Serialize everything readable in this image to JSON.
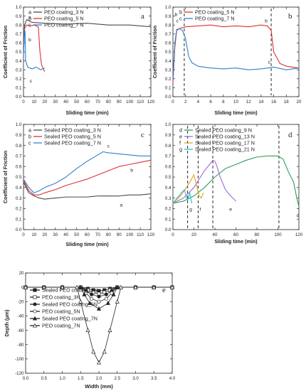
{
  "chart_data": [
    {
      "type": "line",
      "panel": "a",
      "xlabel": "Sliding time (min)",
      "ylabel": "Coefficient of Friction",
      "xlim": [
        0,
        120
      ],
      "ylim": [
        0,
        1.0
      ],
      "xticks": [
        0,
        10,
        20,
        30,
        40,
        50,
        60,
        70,
        80,
        90,
        100,
        110,
        120
      ],
      "yticks": [
        0.0,
        0.1,
        0.2,
        0.3,
        0.4,
        0.5,
        0.6,
        0.7,
        0.8,
        0.9,
        1.0
      ],
      "legend_position": "top-left",
      "series": [
        {
          "key": "a",
          "name": "PEO coating_3 N",
          "color": "#4a4a4a",
          "x": [
            0,
            1,
            3,
            8,
            20,
            40,
            60,
            80,
            100,
            120
          ],
          "y": [
            0.5,
            0.8,
            0.86,
            0.83,
            0.82,
            0.81,
            0.82,
            0.8,
            0.8,
            0.78
          ]
        },
        {
          "key": "b",
          "name": "PEO coating_5 N",
          "color": "#e03030",
          "x": [
            0,
            1,
            3,
            6,
            10,
            14,
            15.5,
            17,
            19,
            20
          ],
          "y": [
            0.45,
            0.76,
            0.8,
            0.79,
            0.8,
            0.78,
            0.5,
            0.36,
            0.3,
            0.28
          ]
        },
        {
          "key": "c",
          "name": "PEO coating_7 N",
          "color": "#2f7fd0",
          "x": [
            0,
            1,
            1.5,
            2,
            4,
            8,
            12,
            16,
            20
          ],
          "y": [
            0.45,
            0.74,
            0.73,
            0.4,
            0.33,
            0.31,
            0.33,
            0.3,
            0.32
          ]
        }
      ],
      "annotations": [
        {
          "text": "a",
          "x": 6,
          "y": 0.87
        },
        {
          "text": "b",
          "x": 6,
          "y": 0.62
        },
        {
          "text": "c",
          "x": 7,
          "y": 0.16
        }
      ]
    },
    {
      "type": "line",
      "panel": "b",
      "xlabel": "Sliding time (min)",
      "ylabel": "Coefficient of Friction",
      "xlim": [
        0,
        20
      ],
      "ylim": [
        0,
        1.0
      ],
      "xticks": [
        0,
        2,
        4,
        6,
        8,
        10,
        12,
        14,
        16,
        18,
        20
      ],
      "yticks": [
        0.0,
        0.1,
        0.2,
        0.3,
        0.4,
        0.5,
        0.6,
        0.7,
        0.8,
        0.9,
        1.0
      ],
      "legend_position": "top-left",
      "series": [
        {
          "key": "b",
          "name": "PEO coating_5 N",
          "color": "#e03030",
          "x": [
            0,
            0.3,
            0.6,
            1,
            2,
            4,
            6,
            8,
            10,
            12,
            14,
            15,
            15.6,
            16,
            17,
            18,
            19,
            20
          ],
          "y": [
            0.15,
            0.55,
            0.74,
            0.76,
            0.78,
            0.79,
            0.8,
            0.78,
            0.79,
            0.78,
            0.8,
            0.79,
            0.74,
            0.5,
            0.37,
            0.34,
            0.33,
            0.32
          ]
        },
        {
          "key": "c",
          "name": "PEO coating_7 N",
          "color": "#2f7fd0",
          "x": [
            0,
            0.3,
            0.6,
            1,
            1.5,
            2,
            2.5,
            3,
            4,
            6,
            8,
            10,
            12,
            14,
            16,
            18,
            20
          ],
          "y": [
            0.2,
            0.6,
            0.75,
            0.76,
            0.74,
            0.65,
            0.45,
            0.38,
            0.34,
            0.32,
            0.31,
            0.32,
            0.3,
            0.31,
            0.33,
            0.3,
            0.32
          ]
        }
      ],
      "vlines": [
        1.8,
        15.6
      ],
      "annotations": [
        {
          "text": "b",
          "x": 0.5,
          "y": 0.9
        },
        {
          "text": "c",
          "x": 0.7,
          "y": 0.83
        },
        {
          "text": "b",
          "x": 14.8,
          "y": 0.83
        },
        {
          "text": "c",
          "x": 15.3,
          "y": 0.37
        }
      ]
    },
    {
      "type": "line",
      "panel": "c",
      "xlabel": "Sliding time (min)",
      "ylabel": "Coefficient of Friction",
      "xlim": [
        0,
        120
      ],
      "ylim": [
        0,
        1.0
      ],
      "xticks": [
        0,
        10,
        20,
        30,
        40,
        50,
        60,
        70,
        80,
        90,
        100,
        110,
        120
      ],
      "yticks": [
        0.0,
        0.1,
        0.2,
        0.3,
        0.4,
        0.5,
        0.6,
        0.7,
        0.8,
        0.9,
        1.0
      ],
      "legend_position": "top-left",
      "series": [
        {
          "key": "a",
          "name": "Sealed PEO coating_3 N",
          "color": "#4a4a4a",
          "x": [
            0,
            5,
            10,
            15,
            20,
            30,
            40,
            50,
            60,
            70,
            80,
            90,
            100,
            110,
            120
          ],
          "y": [
            0.45,
            0.35,
            0.32,
            0.3,
            0.29,
            0.3,
            0.31,
            0.31,
            0.31,
            0.32,
            0.32,
            0.32,
            0.33,
            0.33,
            0.34
          ]
        },
        {
          "key": "b",
          "name": "Sealed PEO coating_5 N",
          "color": "#e03030",
          "x": [
            0,
            5,
            10,
            15,
            20,
            30,
            40,
            50,
            60,
            70,
            80,
            90,
            100,
            110,
            120
          ],
          "y": [
            0.47,
            0.37,
            0.33,
            0.33,
            0.35,
            0.38,
            0.42,
            0.45,
            0.48,
            0.52,
            0.56,
            0.6,
            0.62,
            0.64,
            0.66
          ]
        },
        {
          "key": "c",
          "name": "Sealed PEO coating_7 N",
          "color": "#2f7fd0",
          "x": [
            0,
            5,
            10,
            15,
            20,
            30,
            40,
            50,
            60,
            70,
            75,
            80,
            90,
            100,
            110,
            120
          ],
          "y": [
            0.48,
            0.4,
            0.35,
            0.37,
            0.4,
            0.44,
            0.5,
            0.58,
            0.65,
            0.71,
            0.74,
            0.73,
            0.72,
            0.71,
            0.7,
            0.7
          ]
        }
      ],
      "annotations": [
        {
          "text": "c",
          "x": 80,
          "y": 0.78
        },
        {
          "text": "b",
          "x": 102,
          "y": 0.55
        },
        {
          "text": "a",
          "x": 92,
          "y": 0.22
        }
      ]
    },
    {
      "type": "line",
      "panel": "d",
      "xlabel": "Sliding time (min)",
      "ylabel": "",
      "xlim": [
        0,
        120
      ],
      "ylim": [
        0,
        1.0
      ],
      "xticks": [
        0,
        20,
        40,
        60,
        80,
        100,
        120
      ],
      "yticks": [
        0.0,
        0.1,
        0.2,
        0.3,
        0.4,
        0.5,
        0.6,
        0.7,
        0.8,
        0.9,
        1.0
      ],
      "legend_position": "top-left",
      "series": [
        {
          "key": "d",
          "name": "Sealed PEO coating_9 N",
          "color": "#2e9e58",
          "x": [
            0,
            10,
            20,
            30,
            40,
            50,
            60,
            70,
            80,
            90,
            100,
            105,
            110,
            115,
            118,
            120
          ],
          "y": [
            0.25,
            0.27,
            0.32,
            0.4,
            0.5,
            0.58,
            0.62,
            0.66,
            0.69,
            0.7,
            0.7,
            0.67,
            0.55,
            0.45,
            0.3,
            0.22
          ]
        },
        {
          "key": "e",
          "name": "Sealed PEO coating_13 N",
          "color": "#a46ad6",
          "x": [
            0,
            10,
            20,
            30,
            35,
            38,
            40,
            42,
            45,
            50,
            55,
            60
          ],
          "y": [
            0.25,
            0.3,
            0.4,
            0.56,
            0.62,
            0.66,
            0.65,
            0.6,
            0.5,
            0.38,
            0.32,
            0.27
          ]
        },
        {
          "key": "f",
          "name": "Sealed PEO coating_17 N",
          "color": "#e0a020",
          "x": [
            0,
            8,
            16,
            20,
            23,
            25,
            27,
            29
          ],
          "y": [
            0.25,
            0.33,
            0.45,
            0.52,
            0.4,
            0.32,
            0.3,
            0.35
          ]
        },
        {
          "key": "g",
          "name": "Sealed PEO coating_21 N",
          "color": "#30bcc8",
          "x": [
            0,
            4,
            8,
            11,
            13,
            14,
            16,
            18
          ],
          "y": [
            0.25,
            0.3,
            0.35,
            0.38,
            0.3,
            0.28,
            0.35,
            0.25
          ]
        }
      ],
      "vlines": [
        14,
        24,
        38,
        101
      ],
      "annotations": [
        {
          "text": "g",
          "x": 17,
          "y": 0.18
        },
        {
          "text": "f",
          "x": 26,
          "y": 0.18
        },
        {
          "text": "e",
          "x": 55,
          "y": 0.18
        },
        {
          "text": "d",
          "x": 119,
          "y": 0.12
        }
      ]
    },
    {
      "type": "line",
      "panel": "e",
      "xlabel": "Width (mm)",
      "ylabel": "Depth (μm)",
      "xlim": [
        0.0,
        4.0
      ],
      "ylim": [
        -120,
        20
      ],
      "xticks": [
        0.0,
        0.5,
        1.0,
        1.5,
        2.0,
        2.5,
        3.0,
        3.5,
        4.0
      ],
      "yticks": [
        20,
        0,
        -20,
        -40,
        -60,
        -80,
        -100,
        -120
      ],
      "legend_position": "top-left",
      "series": [
        {
          "name": "Sealed PEO coating_3N",
          "marker": "filled-square",
          "color": "#222222",
          "x": [
            0.0,
            0.5,
            1.0,
            1.5,
            1.7,
            1.85,
            2.0,
            2.15,
            2.3,
            2.5,
            3.0,
            3.5,
            4.0
          ],
          "y": [
            0,
            0,
            0,
            0,
            -2,
            -4,
            -5,
            -4,
            -2,
            0,
            0,
            0,
            0
          ]
        },
        {
          "name": "PEO coating_3N",
          "marker": "open-square",
          "color": "#222222",
          "x": [
            0.0,
            0.5,
            1.0,
            1.5,
            1.7,
            1.85,
            2.0,
            2.15,
            2.3,
            2.5,
            3.0,
            3.5,
            4.0
          ],
          "y": [
            0,
            0,
            0,
            0,
            -4,
            -7,
            -9,
            -7,
            -4,
            0,
            0,
            0,
            0
          ]
        },
        {
          "name": "Sealed PEO coating_5N",
          "marker": "filled-circle",
          "color": "#222222",
          "x": [
            0.0,
            0.5,
            1.0,
            1.5,
            1.65,
            1.8,
            2.0,
            2.2,
            2.35,
            2.5,
            3.0,
            3.5,
            4.0
          ],
          "y": [
            0,
            0,
            0,
            0,
            -5,
            -10,
            -13,
            -10,
            -5,
            0,
            0,
            0,
            0
          ]
        },
        {
          "name": "PEO coating_5N",
          "marker": "open-circle",
          "color": "#222222",
          "x": [
            0.0,
            0.5,
            1.0,
            1.5,
            1.65,
            1.8,
            2.0,
            2.2,
            2.35,
            2.5,
            3.0,
            3.5,
            4.0
          ],
          "y": [
            0,
            0,
            0,
            0,
            -8,
            -16,
            -20,
            -16,
            -8,
            0,
            0,
            0,
            0
          ]
        },
        {
          "name": "Sealed PEO coating_7N",
          "marker": "filled-triangle",
          "color": "#222222",
          "x": [
            0.0,
            0.5,
            1.0,
            1.5,
            1.6,
            1.75,
            2.0,
            2.25,
            2.4,
            2.5,
            3.0,
            3.5,
            4.0
          ],
          "y": [
            0,
            0,
            0,
            0,
            -10,
            -22,
            -30,
            -22,
            -10,
            0,
            0,
            0,
            0
          ]
        },
        {
          "name": "PEO coating_7N",
          "marker": "open-triangle",
          "color": "#222222",
          "x": [
            0.0,
            0.5,
            1.0,
            1.4,
            1.5,
            1.7,
            1.85,
            2.0,
            2.15,
            2.3,
            2.5,
            2.6,
            3.0,
            3.5,
            4.0
          ],
          "y": [
            0,
            0,
            0,
            0,
            -20,
            -60,
            -90,
            -105,
            -90,
            -60,
            -20,
            0,
            0,
            0,
            0
          ]
        }
      ]
    }
  ]
}
